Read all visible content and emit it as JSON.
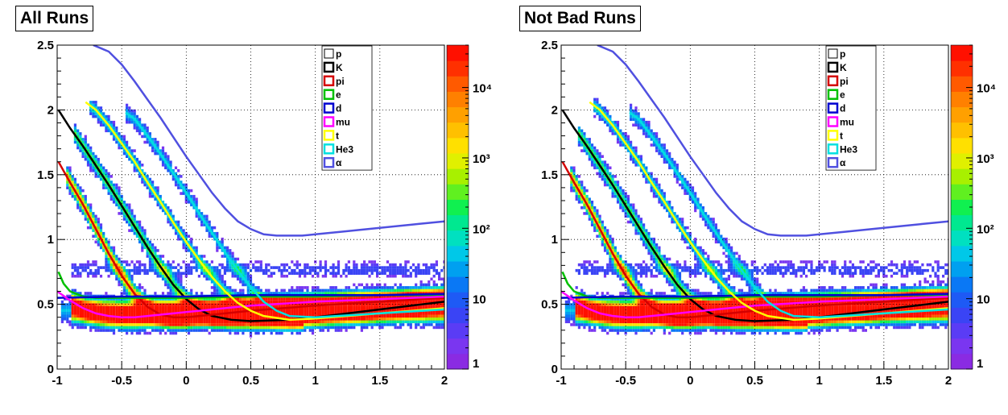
{
  "panels": [
    {
      "title": "All Runs"
    },
    {
      "title": "Not Bad Runs"
    }
  ],
  "chart_data": [
    {
      "type": "heatmap",
      "title": "All Runs",
      "xlabel": "",
      "ylabel": "",
      "xlim": [
        -1,
        2
      ],
      "ylim": [
        0,
        2.5
      ],
      "grid": true,
      "x_ticks": [
        "-1",
        "-0.5",
        "0",
        "0.5",
        "1",
        "1.5",
        "2"
      ],
      "y_ticks": [
        "0",
        "0.5",
        "1",
        "1.5",
        "2",
        "2.5"
      ],
      "colorbar": {
        "scale": "log",
        "range": [
          1,
          40000
        ],
        "tick_labels": [
          "1",
          "10",
          "10²",
          "10³",
          "10⁴"
        ]
      },
      "legend_position": "top-right",
      "series": [
        {
          "name": "p",
          "color": "#000000",
          "x": [
            -0.99,
            -0.9,
            -0.8,
            -0.7,
            -0.6,
            -0.5,
            -0.4,
            -0.3,
            -0.2,
            -0.1,
            0.0,
            0.1,
            0.2,
            0.35,
            0.5,
            0.8,
            1.0,
            1.5,
            2.0
          ],
          "y": [
            2.0,
            1.86,
            1.72,
            1.57,
            1.42,
            1.26,
            1.1,
            0.94,
            0.79,
            0.65,
            0.54,
            0.46,
            0.41,
            0.38,
            0.37,
            0.38,
            0.4,
            0.46,
            0.52
          ]
        },
        {
          "name": "K",
          "color": "#000000",
          "x": [
            -0.99,
            -0.9,
            -0.8,
            -0.7,
            -0.6,
            -0.5,
            -0.4,
            -0.3,
            -0.2,
            -0.1,
            0.0,
            0.1,
            0.2,
            0.35,
            0.5,
            0.8,
            1.0,
            1.5,
            2.0
          ],
          "y": [
            2.0,
            1.86,
            1.72,
            1.57,
            1.42,
            1.26,
            1.1,
            0.94,
            0.79,
            0.65,
            0.54,
            0.46,
            0.41,
            0.38,
            0.37,
            0.38,
            0.4,
            0.46,
            0.52
          ]
        },
        {
          "name": "pi",
          "color": "#d40000",
          "x": [
            -0.99,
            -0.9,
            -0.8,
            -0.7,
            -0.6,
            -0.5,
            -0.4,
            -0.3,
            -0.2,
            -0.1,
            0.0,
            0.2,
            0.5,
            1.0,
            1.5,
            2.0
          ],
          "y": [
            1.6,
            1.44,
            1.27,
            1.08,
            0.89,
            0.72,
            0.58,
            0.48,
            0.42,
            0.4,
            0.4,
            0.42,
            0.45,
            0.49,
            0.52,
            0.55
          ]
        },
        {
          "name": "e",
          "color": "#00c000",
          "x": [
            -0.99,
            -0.95,
            -0.9,
            -0.8,
            -0.7,
            -0.6,
            -0.5,
            -0.3,
            0.0,
            0.5,
            1.0,
            1.5,
            2.0
          ],
          "y": [
            0.75,
            0.66,
            0.6,
            0.56,
            0.55,
            0.55,
            0.55,
            0.55,
            0.55,
            0.56,
            0.56,
            0.57,
            0.57
          ]
        },
        {
          "name": "d",
          "color": "#0000d0",
          "x": [
            -1.0,
            -0.5,
            0.0,
            0.5,
            1.0,
            1.5,
            2.0
          ],
          "y": [
            0.55,
            0.56,
            0.56,
            0.57,
            0.57,
            0.57,
            0.58
          ]
        },
        {
          "name": "mu",
          "color": "#ff00ff",
          "x": [
            -1.0,
            -0.9,
            -0.8,
            -0.7,
            -0.6,
            -0.5,
            -0.4,
            -0.3,
            -0.1,
            0.2,
            0.5,
            1.0,
            1.5,
            2.0
          ],
          "y": [
            0.6,
            0.53,
            0.47,
            0.43,
            0.41,
            0.4,
            0.4,
            0.41,
            0.43,
            0.46,
            0.49,
            0.52,
            0.54,
            0.56
          ]
        },
        {
          "name": "t",
          "color": "#ffff00",
          "x": [
            -0.78,
            -0.7,
            -0.6,
            -0.5,
            -0.4,
            -0.3,
            -0.2,
            -0.1,
            0.0,
            0.1,
            0.2,
            0.3,
            0.4,
            0.5,
            0.6,
            0.8,
            1.0,
            1.5,
            2.0
          ],
          "y": [
            2.06,
            2.0,
            1.88,
            1.74,
            1.6,
            1.44,
            1.29,
            1.13,
            0.98,
            0.84,
            0.71,
            0.6,
            0.51,
            0.45,
            0.41,
            0.38,
            0.39,
            0.43,
            0.47
          ]
        },
        {
          "name": "He3",
          "color": "#00e0e0",
          "x": [
            -0.47,
            -0.4,
            -0.3,
            -0.2,
            -0.1,
            0.0,
            0.1,
            0.2,
            0.3,
            0.4,
            0.5,
            0.6,
            0.7,
            0.8,
            1.0,
            1.5,
            2.0
          ],
          "y": [
            1.98,
            1.93,
            1.8,
            1.66,
            1.51,
            1.36,
            1.2,
            1.05,
            0.9,
            0.76,
            0.63,
            0.52,
            0.45,
            0.41,
            0.4,
            0.43,
            0.46
          ]
        },
        {
          "name": "α",
          "color": "#5050e0",
          "x": [
            -0.72,
            -0.6,
            -0.5,
            -0.4,
            -0.3,
            -0.2,
            -0.1,
            0.0,
            0.1,
            0.2,
            0.3,
            0.4,
            0.5,
            0.6,
            0.7,
            0.8,
            0.9,
            1.0,
            1.2,
            1.5,
            1.8,
            2.0
          ],
          "y": [
            2.5,
            2.45,
            2.35,
            2.22,
            2.08,
            1.94,
            1.79,
            1.64,
            1.5,
            1.36,
            1.24,
            1.14,
            1.08,
            1.04,
            1.03,
            1.03,
            1.03,
            1.04,
            1.06,
            1.09,
            1.12,
            1.14
          ]
        }
      ]
    },
    {
      "type": "heatmap",
      "title": "Not Bad Runs",
      "xlabel": "",
      "ylabel": "",
      "xlim": [
        -1,
        2
      ],
      "ylim": [
        0,
        2.5
      ],
      "grid": true,
      "x_ticks": [
        "-1",
        "-0.5",
        "0",
        "0.5",
        "1",
        "1.5",
        "2"
      ],
      "y_ticks": [
        "0",
        "0.5",
        "1",
        "1.5",
        "2",
        "2.5"
      ],
      "colorbar": {
        "scale": "log",
        "range": [
          1,
          40000
        ],
        "tick_labels": [
          "1",
          "10",
          "10²",
          "10³",
          "10⁴"
        ]
      },
      "legend_position": "top-right",
      "series": [
        {
          "name": "p",
          "color": "#000000",
          "x": [
            -0.99,
            -0.9,
            -0.8,
            -0.7,
            -0.6,
            -0.5,
            -0.4,
            -0.3,
            -0.2,
            -0.1,
            0.0,
            0.1,
            0.2,
            0.35,
            0.5,
            0.8,
            1.0,
            1.5,
            2.0
          ],
          "y": [
            2.0,
            1.86,
            1.72,
            1.57,
            1.42,
            1.26,
            1.1,
            0.94,
            0.79,
            0.65,
            0.54,
            0.46,
            0.41,
            0.38,
            0.37,
            0.38,
            0.4,
            0.46,
            0.52
          ]
        },
        {
          "name": "K",
          "color": "#000000",
          "x": [
            -0.99,
            -0.9,
            -0.8,
            -0.7,
            -0.6,
            -0.5,
            -0.4,
            -0.3,
            -0.2,
            -0.1,
            0.0,
            0.1,
            0.2,
            0.35,
            0.5,
            0.8,
            1.0,
            1.5,
            2.0
          ],
          "y": [
            2.0,
            1.86,
            1.72,
            1.57,
            1.42,
            1.26,
            1.1,
            0.94,
            0.79,
            0.65,
            0.54,
            0.46,
            0.41,
            0.38,
            0.37,
            0.38,
            0.4,
            0.46,
            0.52
          ]
        },
        {
          "name": "pi",
          "color": "#d40000",
          "x": [
            -0.99,
            -0.9,
            -0.8,
            -0.7,
            -0.6,
            -0.5,
            -0.4,
            -0.3,
            -0.2,
            -0.1,
            0.0,
            0.2,
            0.5,
            1.0,
            1.5,
            2.0
          ],
          "y": [
            1.6,
            1.44,
            1.27,
            1.08,
            0.89,
            0.72,
            0.58,
            0.48,
            0.42,
            0.4,
            0.4,
            0.42,
            0.45,
            0.49,
            0.52,
            0.55
          ]
        },
        {
          "name": "e",
          "color": "#00c000",
          "x": [
            -0.99,
            -0.95,
            -0.9,
            -0.8,
            -0.7,
            -0.6,
            -0.5,
            -0.3,
            0.0,
            0.5,
            1.0,
            1.5,
            2.0
          ],
          "y": [
            0.75,
            0.66,
            0.6,
            0.56,
            0.55,
            0.55,
            0.55,
            0.55,
            0.55,
            0.56,
            0.56,
            0.57,
            0.57
          ]
        },
        {
          "name": "d",
          "color": "#0000d0",
          "x": [
            -1.0,
            -0.5,
            0.0,
            0.5,
            1.0,
            1.5,
            2.0
          ],
          "y": [
            0.55,
            0.56,
            0.56,
            0.57,
            0.57,
            0.57,
            0.58
          ]
        },
        {
          "name": "mu",
          "color": "#ff00ff",
          "x": [
            -1.0,
            -0.9,
            -0.8,
            -0.7,
            -0.6,
            -0.5,
            -0.4,
            -0.3,
            -0.1,
            0.2,
            0.5,
            1.0,
            1.5,
            2.0
          ],
          "y": [
            0.6,
            0.53,
            0.47,
            0.43,
            0.41,
            0.4,
            0.4,
            0.41,
            0.43,
            0.46,
            0.49,
            0.52,
            0.54,
            0.56
          ]
        },
        {
          "name": "t",
          "color": "#ffff00",
          "x": [
            -0.78,
            -0.7,
            -0.6,
            -0.5,
            -0.4,
            -0.3,
            -0.2,
            -0.1,
            0.0,
            0.1,
            0.2,
            0.3,
            0.4,
            0.5,
            0.6,
            0.8,
            1.0,
            1.5,
            2.0
          ],
          "y": [
            2.06,
            2.0,
            1.88,
            1.74,
            1.6,
            1.44,
            1.29,
            1.13,
            0.98,
            0.84,
            0.71,
            0.6,
            0.51,
            0.45,
            0.41,
            0.38,
            0.39,
            0.43,
            0.47
          ]
        },
        {
          "name": "He3",
          "color": "#00e0e0",
          "x": [
            -0.47,
            -0.4,
            -0.3,
            -0.2,
            -0.1,
            0.0,
            0.1,
            0.2,
            0.3,
            0.4,
            0.5,
            0.6,
            0.7,
            0.8,
            1.0,
            1.5,
            2.0
          ],
          "y": [
            1.98,
            1.93,
            1.8,
            1.66,
            1.51,
            1.36,
            1.2,
            1.05,
            0.9,
            0.76,
            0.63,
            0.52,
            0.45,
            0.41,
            0.4,
            0.43,
            0.46
          ]
        },
        {
          "name": "α",
          "color": "#5050e0",
          "x": [
            -0.72,
            -0.6,
            -0.5,
            -0.4,
            -0.3,
            -0.2,
            -0.1,
            0.0,
            0.1,
            0.2,
            0.3,
            0.4,
            0.5,
            0.6,
            0.7,
            0.8,
            0.9,
            1.0,
            1.2,
            1.5,
            1.8,
            2.0
          ],
          "y": [
            2.5,
            2.45,
            2.35,
            2.22,
            2.08,
            1.94,
            1.79,
            1.64,
            1.5,
            1.36,
            1.24,
            1.14,
            1.08,
            1.04,
            1.03,
            1.03,
            1.03,
            1.04,
            1.06,
            1.09,
            1.12,
            1.14
          ]
        }
      ]
    }
  ]
}
